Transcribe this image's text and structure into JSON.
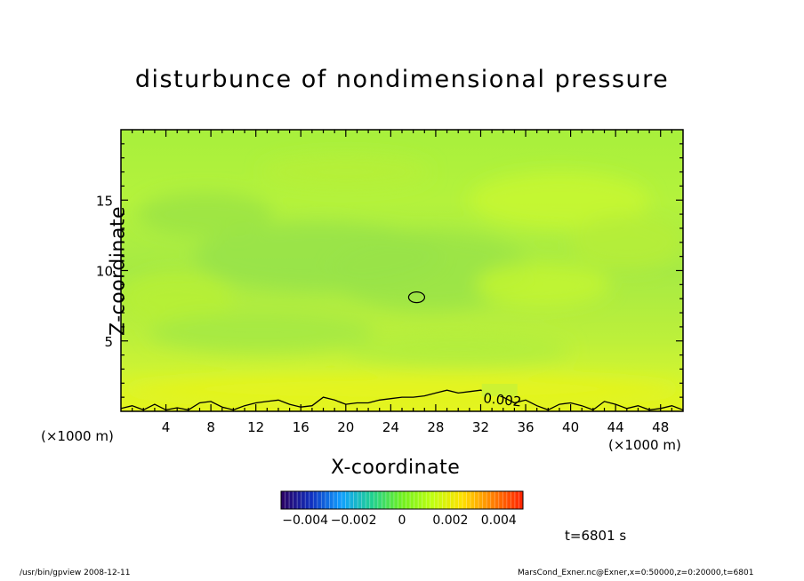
{
  "chart_data": {
    "type": "heatmap",
    "title": "disturbunce of nondimensional pressure",
    "xlabel": "X-coordinate",
    "ylabel": "Z-coordinate",
    "x_unit": "(×1000 m)",
    "x_unit_right": "(×1000 m)",
    "xlim": [
      0,
      50
    ],
    "ylim": [
      0,
      20
    ],
    "x_ticks": [
      4,
      8,
      12,
      16,
      20,
      24,
      28,
      32,
      36,
      40,
      44,
      48
    ],
    "y_ticks": [
      5,
      10,
      15
    ],
    "colorbar": {
      "range": [
        -0.005,
        0.005
      ],
      "tick_values": [
        -0.004,
        -0.002,
        0,
        0.002,
        0.004
      ],
      "tick_labels": [
        "−0.004",
        "−0.002",
        "0",
        "0.002",
        "0.004"
      ],
      "colors": [
        "#2a0060",
        "#1030c0",
        "#10a0ff",
        "#20d090",
        "#70f020",
        "#c0ff10",
        "#ffe000",
        "#ff8000",
        "#ff2000"
      ]
    },
    "contour_levels": [
      0.002
    ],
    "contour_labels": [
      "0.002"
    ],
    "field_value_range": [
      0.0005,
      0.002
    ]
  },
  "annotation": {
    "time": "t=6801 s"
  },
  "footer": {
    "left": "/usr/bin/gpview   2008-12-11",
    "right": "MarsCond_Exner.nc@Exner,x=0:50000,z=0:20000,t=6801"
  }
}
